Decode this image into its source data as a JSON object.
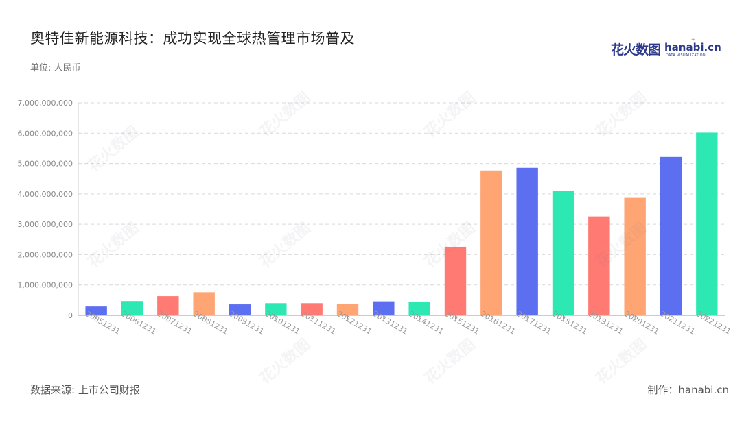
{
  "title": "奥特佳新能源科技：成功实现全球热管理市场普及",
  "subtitle": "单位: 人民币",
  "source": "数据来源: 上市公司财报",
  "credit": "制作：hanabi.cn",
  "logo": {
    "cn": "花火数图",
    "en": "hanabi.cn",
    "sub": "DATA VISUALIZATION"
  },
  "chart_data": {
    "type": "bar",
    "categories": [
      "20051231",
      "20061231",
      "20071231",
      "20081231",
      "20091231",
      "20101231",
      "20111231",
      "20121231",
      "20131231",
      "20141231",
      "20151231",
      "20161231",
      "20171231",
      "20181231",
      "20191231",
      "20201231",
      "20211231",
      "20221231"
    ],
    "values": [
      290000000,
      470000000,
      630000000,
      760000000,
      360000000,
      400000000,
      400000000,
      380000000,
      460000000,
      430000000,
      2260000000,
      4770000000,
      4860000000,
      4110000000,
      3260000000,
      3870000000,
      5220000000,
      6020000000
    ],
    "colors": [
      "#5b6ff0",
      "#2ee8b4",
      "#ff7a72",
      "#ffa574",
      "#5b6ff0",
      "#2ee8b4",
      "#ff7a72",
      "#ffa574",
      "#5b6ff0",
      "#2ee8b4",
      "#ff7a72",
      "#ffa574",
      "#5b6ff0",
      "#2ee8b4",
      "#ff7a72",
      "#ffa574",
      "#5b6ff0",
      "#2ee8b4"
    ],
    "yticks": [
      "0",
      "1,000,000,000",
      "2,000,000,000",
      "3,000,000,000",
      "4,000,000,000",
      "5,000,000,000",
      "6,000,000,000",
      "7,000,000,000"
    ],
    "ylim": [
      0,
      7000000000
    ],
    "grid": true
  }
}
